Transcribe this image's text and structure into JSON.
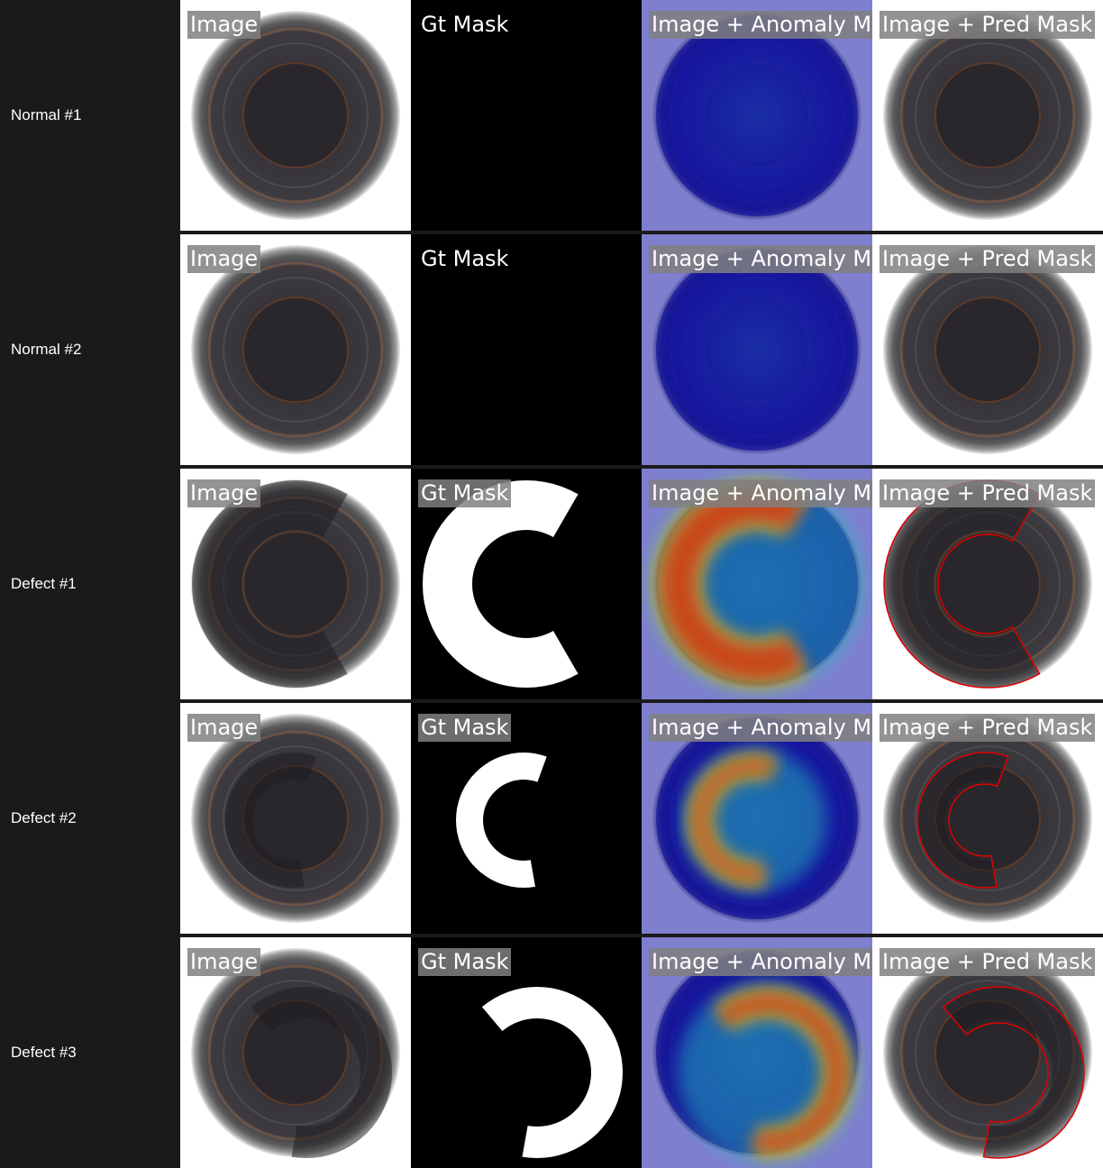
{
  "rows": [
    {
      "label": "Normal #1",
      "panels": [
        "Image",
        "Gt Mask",
        "Image + Anomaly Map",
        "Image + Pred Mask"
      ]
    },
    {
      "label": "Normal #2",
      "panels": [
        "Image",
        "Gt Mask",
        "Image + Anomaly Map",
        "Image + Pred Mask"
      ]
    },
    {
      "label": "Defect #1",
      "panels": [
        "Image",
        "Gt Mask",
        "Image + Anomaly Map",
        "Image + Pred Mask"
      ]
    },
    {
      "label": "Defect #2",
      "panels": [
        "Image",
        "Gt Mask",
        "Image + Anomaly Map",
        "Image + Pred Mask"
      ]
    },
    {
      "label": "Defect #3",
      "panels": [
        "Image",
        "Gt Mask",
        "Image + Anomaly Map",
        "Image + Pred Mask"
      ]
    }
  ]
}
